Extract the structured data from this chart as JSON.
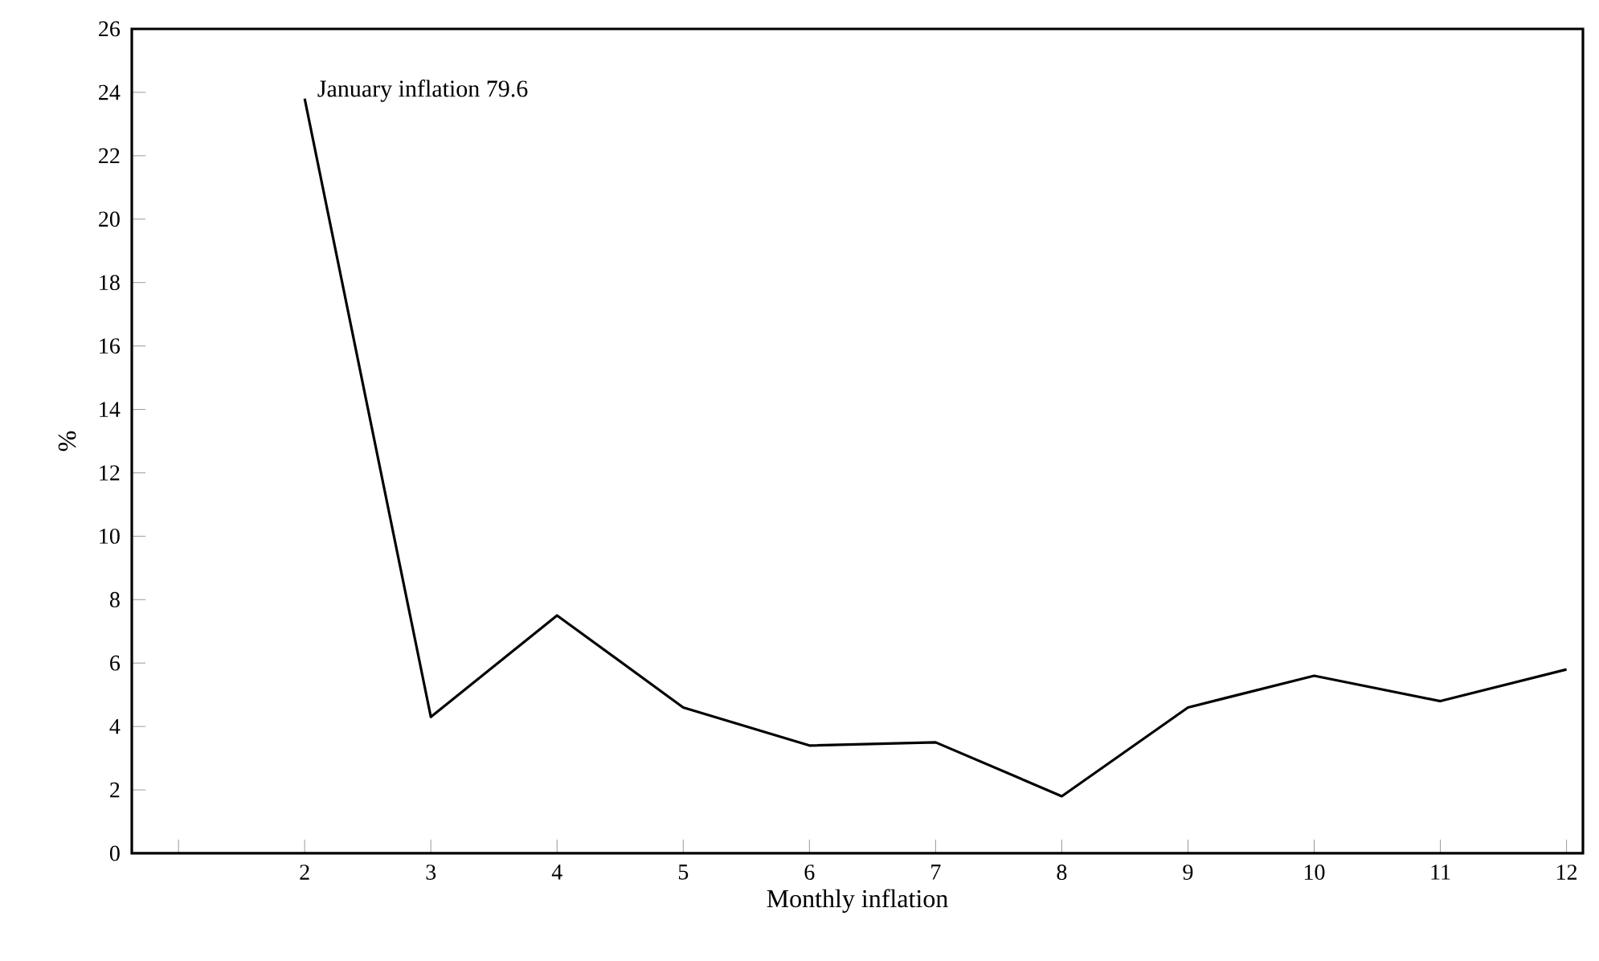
{
  "chart_data": {
    "type": "line",
    "xlabel": "Monthly inflation",
    "ylabel": "%",
    "x": [
      2,
      3,
      4,
      5,
      6,
      7,
      8,
      9,
      10,
      11,
      12
    ],
    "values": [
      23.8,
      4.3,
      7.5,
      4.6,
      3.4,
      3.5,
      1.8,
      4.6,
      5.6,
      4.8,
      5.8
    ],
    "color": "#000000",
    "xlim": [
      0.63,
      12.13
    ],
    "xticks": [
      {
        "value": 1,
        "label": null
      },
      2,
      3,
      4,
      5,
      6,
      7,
      8,
      9,
      10,
      11,
      12
    ],
    "ylim": [
      0,
      26
    ],
    "yticks": [
      0,
      2,
      4,
      6,
      8,
      10,
      12,
      14,
      16,
      18,
      20,
      22,
      24,
      26
    ],
    "annotations": [
      "January inflation 79.6"
    ]
  }
}
